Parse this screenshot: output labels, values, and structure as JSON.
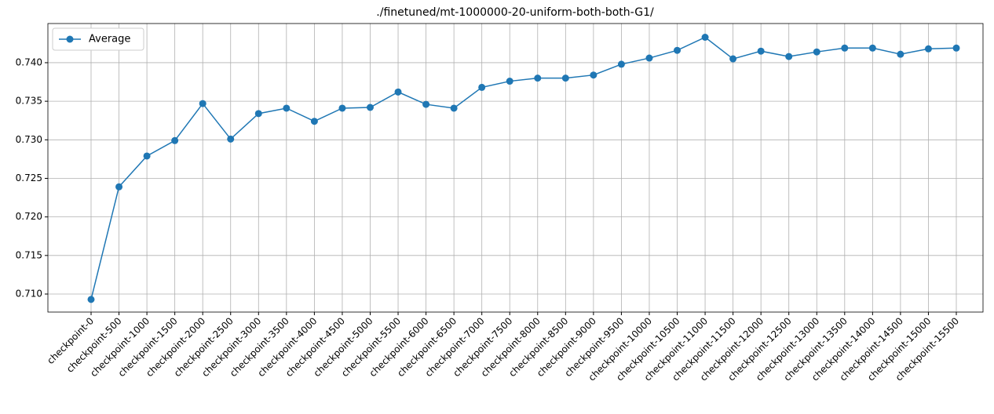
{
  "chart_data": {
    "type": "line",
    "title": "./finetuned/mt-1000000-20-uniform-both-both-G1/",
    "categories": [
      "checkpoint-0",
      "checkpoint-500",
      "checkpoint-1000",
      "checkpoint-1500",
      "checkpoint-2000",
      "checkpoint-2500",
      "checkpoint-3000",
      "checkpoint-3500",
      "checkpoint-4000",
      "checkpoint-4500",
      "checkpoint-5000",
      "checkpoint-5500",
      "checkpoint-6000",
      "checkpoint-6500",
      "checkpoint-7000",
      "checkpoint-7500",
      "checkpoint-8000",
      "checkpoint-8500",
      "checkpoint-9000",
      "checkpoint-9500",
      "checkpoint-10000",
      "checkpoint-10500",
      "checkpoint-11000",
      "checkpoint-11500",
      "checkpoint-12000",
      "checkpoint-12500",
      "checkpoint-13000",
      "checkpoint-13500",
      "checkpoint-14000",
      "checkpoint-14500",
      "checkpoint-15000",
      "checkpoint-15500"
    ],
    "series": [
      {
        "name": "Average",
        "color": "#1f77b4",
        "values": [
          0.7093,
          0.7239,
          0.7279,
          0.7299,
          0.7347,
          0.7301,
          0.7334,
          0.7341,
          0.7324,
          0.7341,
          0.7342,
          0.7362,
          0.7346,
          0.7341,
          0.7368,
          0.7376,
          0.738,
          0.738,
          0.7384,
          0.7398,
          0.7406,
          0.7416,
          0.7433,
          0.7405,
          0.7415,
          0.7408,
          0.7414,
          0.7419,
          0.7419,
          0.7411,
          0.7418,
          0.7419
        ]
      }
    ],
    "ylim": [
      0.70766,
      0.74508
    ],
    "yticks": [
      {
        "value": 0.71,
        "label": "0.710"
      },
      {
        "value": 0.715,
        "label": "0.715"
      },
      {
        "value": 0.72,
        "label": "0.720"
      },
      {
        "value": 0.725,
        "label": "0.725"
      },
      {
        "value": 0.73,
        "label": "0.730"
      },
      {
        "value": 0.735,
        "label": "0.735"
      },
      {
        "value": 0.74,
        "label": "0.740"
      }
    ],
    "grid": true,
    "legend": "upper-left"
  }
}
